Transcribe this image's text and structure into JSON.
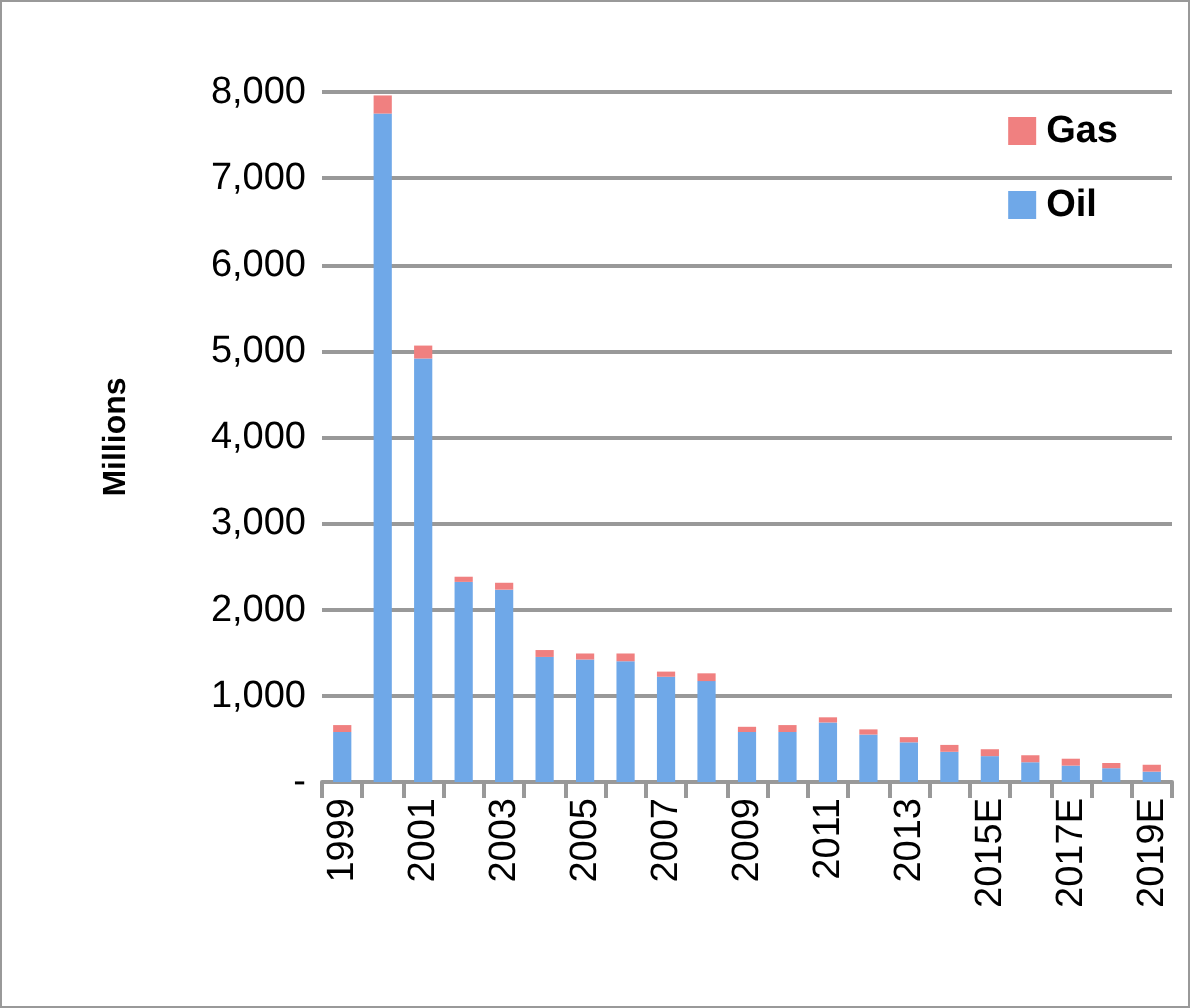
{
  "chart_data": {
    "type": "bar",
    "stacked": true,
    "ylabel": "Millions",
    "categories": [
      "1999",
      null,
      "2001",
      null,
      "2003",
      null,
      "2005",
      null,
      "2007",
      null,
      "2009",
      null,
      "2011",
      null,
      "2013",
      null,
      "2015E",
      null,
      "2017E",
      null,
      "2019E"
    ],
    "series": [
      {
        "name": "Oil",
        "color": "#6fa8e8",
        "values": [
          580,
          7750,
          4910,
          2320,
          2230,
          1450,
          1420,
          1400,
          1220,
          1170,
          580,
          580,
          690,
          550,
          460,
          350,
          300,
          230,
          190,
          160,
          120
        ]
      },
      {
        "name": "Gas",
        "color": "#f08080",
        "values": [
          80,
          210,
          150,
          60,
          80,
          80,
          70,
          90,
          60,
          90,
          60,
          80,
          60,
          60,
          60,
          80,
          80,
          80,
          80,
          60,
          80
        ]
      }
    ],
    "ylim": [
      0,
      8000
    ],
    "yticks": [
      {
        "value": 0,
        "label": "-"
      },
      {
        "value": 1000,
        "label": "1,000"
      },
      {
        "value": 2000,
        "label": "2,000"
      },
      {
        "value": 3000,
        "label": "3,000"
      },
      {
        "value": 4000,
        "label": "4,000"
      },
      {
        "value": 5000,
        "label": "5,000"
      },
      {
        "value": 6000,
        "label": "6,000"
      },
      {
        "value": 7000,
        "label": "7,000"
      },
      {
        "value": 8000,
        "label": "8,000"
      }
    ],
    "grid": "y",
    "legend": "top right"
  }
}
